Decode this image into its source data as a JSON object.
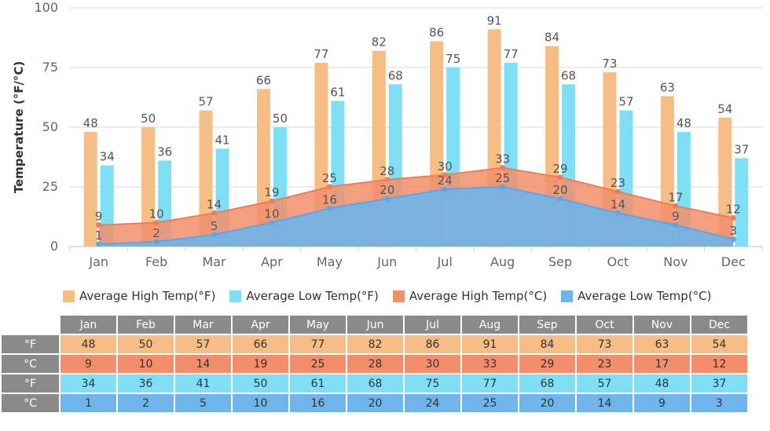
{
  "chart_data": {
    "type": "bar",
    "ylabel": "Temperature (°F/°C)",
    "ylim": [
      0,
      100
    ],
    "yticks": [
      0,
      25,
      50,
      75,
      100
    ],
    "categories": [
      "Jan",
      "Feb",
      "Mar",
      "Apr",
      "May",
      "Jun",
      "Jul",
      "Aug",
      "Sep",
      "Oct",
      "Nov",
      "Dec"
    ],
    "series": [
      {
        "name": "Average High Temp(°F)",
        "kind": "bar",
        "color": "#f6bd85",
        "values": [
          48,
          50,
          57,
          66,
          77,
          82,
          86,
          91,
          84,
          73,
          63,
          54
        ]
      },
      {
        "name": "Average Low Temp(°F)",
        "kind": "bar",
        "color": "#7fe0f5",
        "values": [
          34,
          36,
          41,
          50,
          61,
          68,
          75,
          77,
          68,
          57,
          48,
          37
        ]
      },
      {
        "name": "Average High Temp(°C)",
        "kind": "area",
        "color": "#f28e6a",
        "values": [
          9,
          10,
          14,
          19,
          25,
          28,
          30,
          33,
          29,
          23,
          17,
          12
        ]
      },
      {
        "name": "Average Low Temp(°C)",
        "kind": "area",
        "color": "#6fb4ea",
        "values": [
          1,
          2,
          5,
          10,
          16,
          20,
          24,
          25,
          20,
          14,
          9,
          3
        ]
      }
    ],
    "grid": true,
    "legend": "bottom"
  },
  "table": {
    "units": [
      "°F",
      "°C",
      "°F",
      "°C"
    ]
  }
}
